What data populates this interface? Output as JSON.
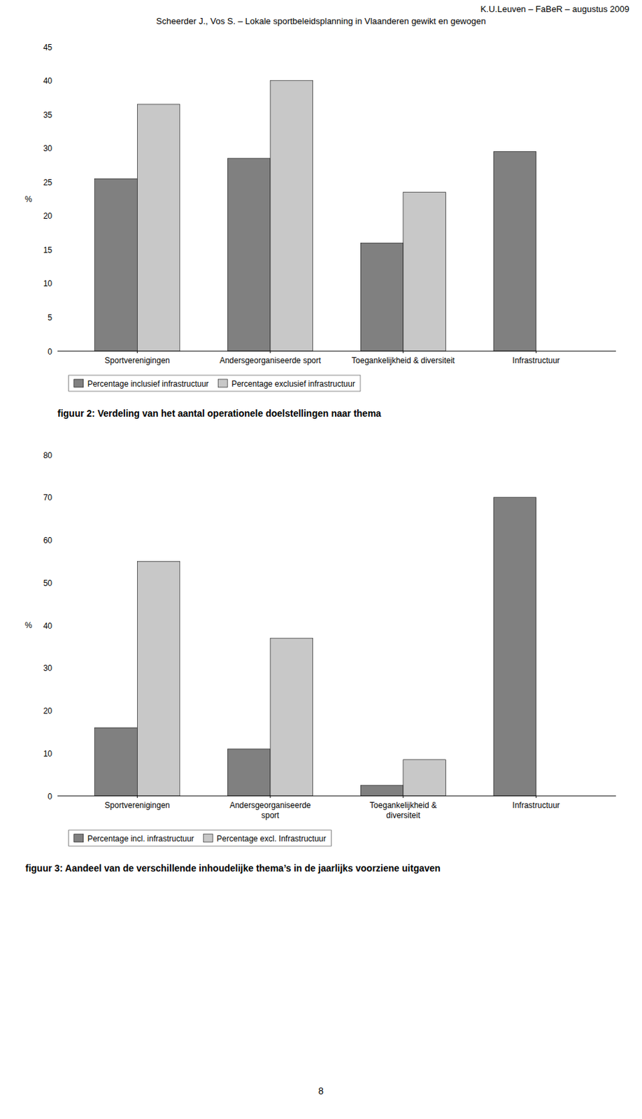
{
  "annotations": [
    "K.U.Leuven – FaBeR – augustus 2009",
    "Scheerder J., Vos S. – Lokale sportbeleidsplanning in Vlaanderen gewikt en gewogen",
    "8"
  ],
  "chart_data": [
    {
      "type": "bar",
      "title": "figuur 2: Verdeling van het aantal operationele doelstellingen naar thema",
      "ylabel": "%",
      "categories": [
        "Sportverenigingen",
        "Andersgeorganiseerde sport",
        "Toegankelijkheid & diversiteit",
        "Infrastructuur"
      ],
      "series": [
        {
          "name": "Percentage inclusief infrastructuur",
          "color": "#808080",
          "values": [
            25.5,
            28.5,
            16.0,
            29.5
          ]
        },
        {
          "name": "Percentage exclusief infrastructuur",
          "color": "#c8c8c8",
          "values": [
            36.5,
            40.0,
            23.5,
            null
          ]
        }
      ],
      "ylim": [
        0,
        45
      ],
      "yticks": [
        0,
        5,
        10,
        15,
        20,
        25,
        30,
        35,
        40,
        45
      ],
      "grid": false,
      "legend": "bottom"
    },
    {
      "type": "bar",
      "title": "figuur 3: Aandeel van de verschillende inhoudelijke thema’s in de jaarlijks voorziene uitgaven",
      "ylabel": "%",
      "categories": [
        "Sportverenigingen",
        "Andersgeorganiseerde\nsport",
        "Toegankelijkheid &\ndiversiteit",
        "Infrastructuur"
      ],
      "series": [
        {
          "name": "Percentage incl. infrastructuur",
          "color": "#808080",
          "values": [
            16.0,
            11.0,
            2.5,
            70.0
          ]
        },
        {
          "name": "Percentage excl. Infrastructuur",
          "color": "#c8c8c8",
          "values": [
            55.0,
            37.0,
            8.5,
            null
          ]
        }
      ],
      "ylim": [
        0,
        80
      ],
      "yticks": [
        0,
        10,
        20,
        30,
        40,
        50,
        60,
        70,
        80
      ],
      "grid": false,
      "legend": "bottom"
    }
  ]
}
